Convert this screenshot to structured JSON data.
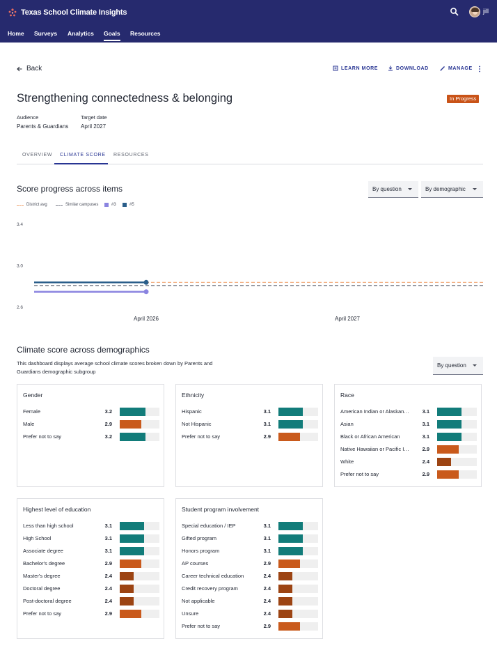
{
  "app": {
    "title": "Texas School Climate Insights",
    "user": "jill"
  },
  "nav": [
    {
      "label": "Home"
    },
    {
      "label": "Surveys"
    },
    {
      "label": "Analytics"
    },
    {
      "label": "Goals",
      "active": true
    },
    {
      "label": "Resources"
    }
  ],
  "actions": {
    "back": "Back",
    "learn_more": "LEARN MORE",
    "download": "DOWNLOAD",
    "manage": "MANAGE"
  },
  "goal": {
    "title": "Strengthening connectedness & belonging",
    "status": "In Progress",
    "audience_label": "Audience",
    "audience": "Parents & Guardians",
    "target_label": "Target date",
    "target": "April 2027"
  },
  "tabs": [
    {
      "label": "OVERVIEW"
    },
    {
      "label": "CLIMATE SCORE",
      "active": true
    },
    {
      "label": "RESOURCES"
    }
  ],
  "score_progress": {
    "title": "Score progress across items",
    "dropdown_question": "By question",
    "dropdown_demographic": "By demographic"
  },
  "chart_data": {
    "type": "line",
    "x_ticks": [
      "April 2026",
      "April 2027"
    ],
    "y_ticks": [
      "3.4",
      "3.0",
      "2.6"
    ],
    "ylim": [
      2.6,
      3.4
    ],
    "legend": [
      {
        "name": "District avg",
        "style": "dashed",
        "color": "#f0a36e"
      },
      {
        "name": "Similar campuses",
        "style": "dashed",
        "color": "#777b86"
      },
      {
        "name": "#3",
        "style": "square",
        "color": "#8a84e0"
      },
      {
        "name": "#5",
        "style": "square",
        "color": "#2a5e8a"
      }
    ],
    "reference_lines": [
      {
        "name": "District avg",
        "value": 2.84,
        "color": "#f0a36e"
      },
      {
        "name": "Similar campuses",
        "value": 2.81,
        "color": "#777b86"
      }
    ],
    "series": [
      {
        "name": "#5",
        "color": "#2a5e8a",
        "points": [
          {
            "x": "start",
            "y": 2.84
          },
          {
            "x": "April 2026",
            "y": 2.84
          }
        ]
      },
      {
        "name": "#3",
        "color": "#8a84e0",
        "points": [
          {
            "x": "start",
            "y": 2.75
          },
          {
            "x": "April 2026",
            "y": 2.75
          }
        ]
      }
    ]
  },
  "demographics": {
    "title": "Climate score across demographics",
    "description": "This dashboard displays average school climate scores broken down by Parents and Guardians demographic subgroup",
    "dropdown": "By question",
    "max_score": 4,
    "colors": {
      "high": "#127c7a",
      "mid": "#c95a1c",
      "low": "#9c4413"
    },
    "groups": [
      {
        "title": "Gender",
        "rows": [
          {
            "label": "Female",
            "value": "3.2",
            "level": "high"
          },
          {
            "label": "Male",
            "value": "2.9",
            "level": "mid"
          },
          {
            "label": "Prefer not to say",
            "value": "3.2",
            "level": "high"
          }
        ]
      },
      {
        "title": "Ethnicity",
        "rows": [
          {
            "label": "Hispanic",
            "value": "3.1",
            "level": "high"
          },
          {
            "label": "Not Hispanic",
            "value": "3.1",
            "level": "high"
          },
          {
            "label": "Prefer not to say",
            "value": "2.9",
            "level": "mid"
          }
        ]
      },
      {
        "title": "Race",
        "rows": [
          {
            "label": "American Indian or Alaskan…",
            "value": "3.1",
            "level": "high"
          },
          {
            "label": "Asian",
            "value": "3.1",
            "level": "high"
          },
          {
            "label": "Black or African American",
            "value": "3.1",
            "level": "high"
          },
          {
            "label": "Native Hawaiian or Pacific I…",
            "value": "2.9",
            "level": "mid"
          },
          {
            "label": "White",
            "value": "2.4",
            "level": "low"
          },
          {
            "label": "Prefer not to say",
            "value": "2.9",
            "level": "mid"
          }
        ]
      },
      {
        "title": "Highest level of education",
        "rows": [
          {
            "label": "Less than high school",
            "value": "3.1",
            "level": "high"
          },
          {
            "label": "High School",
            "value": "3.1",
            "level": "high"
          },
          {
            "label": "Associate degree",
            "value": "3.1",
            "level": "high"
          },
          {
            "label": "Bachelor's degree",
            "value": "2.9",
            "level": "mid"
          },
          {
            "label": "Master's degree",
            "value": "2.4",
            "level": "low"
          },
          {
            "label": "Doctoral degree",
            "value": "2.4",
            "level": "low"
          },
          {
            "label": "Post-doctoral degree",
            "value": "2.4",
            "level": "low"
          },
          {
            "label": "Prefer not to say",
            "value": "2.9",
            "level": "mid"
          }
        ]
      },
      {
        "title": "Student program involvement",
        "rows": [
          {
            "label": "Special education / IEP",
            "value": "3.1",
            "level": "high"
          },
          {
            "label": "Gifted program",
            "value": "3.1",
            "level": "high"
          },
          {
            "label": "Honors program",
            "value": "3.1",
            "level": "high"
          },
          {
            "label": "AP courses",
            "value": "2.9",
            "level": "mid"
          },
          {
            "label": "Career technical education",
            "value": "2.4",
            "level": "low"
          },
          {
            "label": "Credit recovery program",
            "value": "2.4",
            "level": "low"
          },
          {
            "label": "Not applicable",
            "value": "2.4",
            "level": "low"
          },
          {
            "label": "Unsure",
            "value": "2.4",
            "level": "low"
          },
          {
            "label": "Prefer not to say",
            "value": "2.9",
            "level": "mid"
          }
        ]
      }
    ]
  }
}
